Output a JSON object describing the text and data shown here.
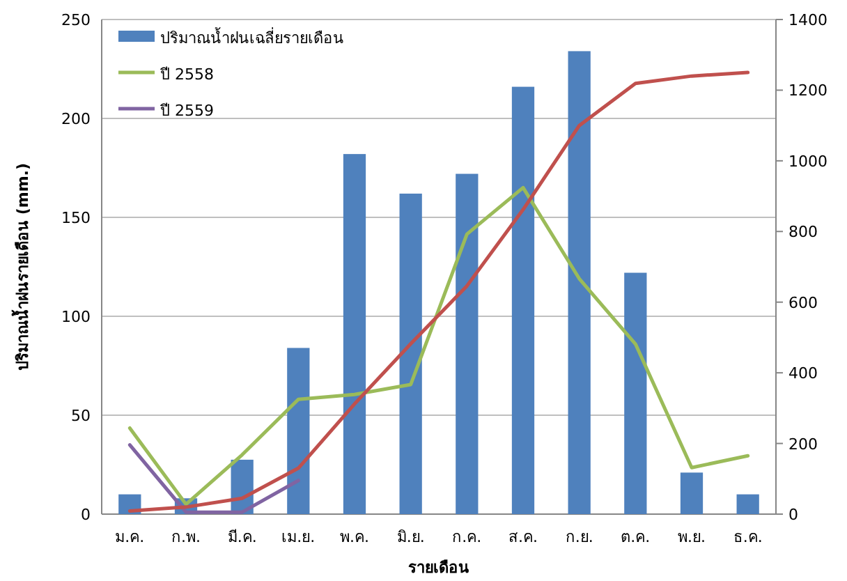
{
  "chart_data": {
    "type": "bar",
    "xlabel": "รายเดือน",
    "ylabel": "ปริมาณน้ำฝนรายเดือน (mm.)",
    "categories": [
      "ม.ค.",
      "ก.พ.",
      "มี.ค.",
      "เม.ย.",
      "พ.ค.",
      "มิ.ย.",
      "ก.ค.",
      "ส.ค.",
      "ก.ย.",
      "ต.ค.",
      "พ.ย.",
      "ธ.ค."
    ],
    "series": [
      {
        "name": "ปริมาณน้ำฝนเฉลี่ยรายเดือน",
        "color": "#4f81bd",
        "values": [
          10,
          8,
          27.5,
          84,
          182,
          162,
          172,
          216,
          234,
          122,
          21,
          10
        ]
      },
      {
        "name": "ปี 2558",
        "type": "line",
        "color": "#9bbb59",
        "values": [
          43.5,
          5,
          30,
          58,
          60.5,
          65.5,
          141.5,
          165,
          119,
          86,
          23.5,
          29.5
        ]
      },
      {
        "name": "ปี 2559",
        "type": "line",
        "color": "#8064a2",
        "values": [
          35,
          1,
          1,
          17,
          null,
          null,
          null,
          null,
          null,
          null,
          null,
          null
        ]
      },
      {
        "type": "line",
        "axis": "y2",
        "color": "#c0504d",
        "values": [
          9,
          20,
          45,
          130,
          312,
          482,
          646,
          862,
          1100,
          1219,
          1240,
          1250
        ]
      }
    ],
    "ylim": [
      0,
      250
    ],
    "yticks": [
      0,
      50,
      100,
      150,
      200,
      250
    ],
    "y2lim": [
      0,
      1400
    ],
    "y2ticks": [
      0,
      200,
      400,
      600,
      800,
      1000,
      1200,
      1400
    ],
    "grid": "y",
    "legend": "top left"
  }
}
